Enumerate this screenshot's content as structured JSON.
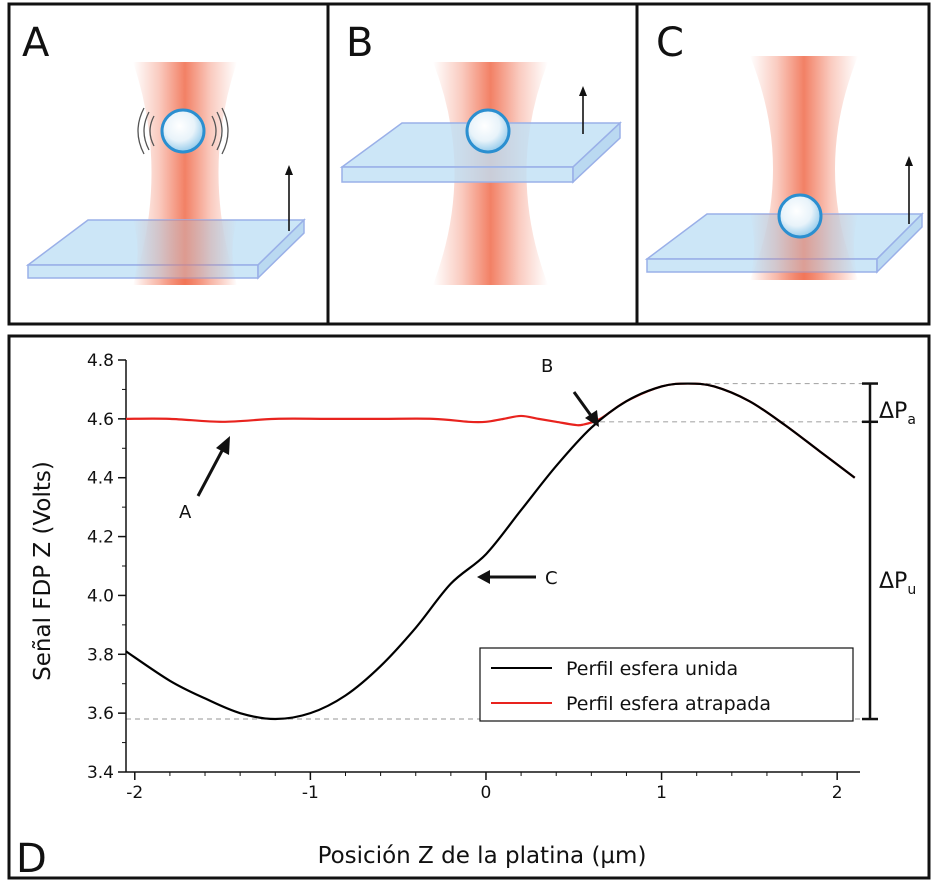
{
  "panels": [
    {
      "letter": "A",
      "state": "sphere trapped above, stage below"
    },
    {
      "letter": "B",
      "state": "stage touching sphere"
    },
    {
      "letter": "C",
      "state": "sphere bound on stage"
    }
  ],
  "colors": {
    "beam": "#f06a4a",
    "stage_top": "#bfe0f5",
    "stage_edge": "#9ab0e8",
    "sphere": "#cfe8f7",
    "sphere_edge": "#2b8fd0",
    "bound_line": "#000000",
    "trapped_line": "#e8231e"
  },
  "plot": {
    "panel_letter": "D",
    "xlabel": "Posición Z de la platina (µm)",
    "ylabel": "Señal FDP Z (Volts)",
    "annotations": {
      "A": "A",
      "B": "B",
      "C": "C"
    },
    "delta_a": {
      "main": "ΔP",
      "sub": "a"
    },
    "delta_u": {
      "main": "ΔP",
      "sub": "u"
    },
    "legend": [
      "Perfil esfera unida",
      "Perfil esfera atrapada"
    ]
  },
  "chart_data": {
    "type": "line",
    "xlabel": "Posición Z de la platina (µm)",
    "ylabel": "Señal FDP Z (Volts)",
    "xlim": [
      -2.05,
      2.13
    ],
    "ylim": [
      3.4,
      4.8
    ],
    "xticks": [
      -2,
      -1,
      0,
      1,
      2
    ],
    "yticks": [
      3.4,
      3.6,
      3.8,
      4.0,
      4.2,
      4.4,
      4.6,
      4.8
    ],
    "xtick_labels": [
      "-2",
      "-1",
      "0",
      "1",
      "2"
    ],
    "ytick_labels": [
      "3.4",
      "3.6",
      "3.8",
      "4.0",
      "4.2",
      "4.4",
      "4.6",
      "4.8"
    ],
    "grid": false,
    "legend_position": "bottom-right",
    "reference_lines_y": [
      4.72,
      4.59,
      3.58
    ],
    "series": [
      {
        "name": "Perfil esfera unida",
        "color": "#000000",
        "x": [
          -2.05,
          -1.8,
          -1.6,
          -1.4,
          -1.2,
          -1.0,
          -0.8,
          -0.6,
          -0.4,
          -0.2,
          0.0,
          0.2,
          0.4,
          0.6,
          0.8,
          1.0,
          1.15,
          1.3,
          1.5,
          1.7,
          1.9,
          2.1
        ],
        "y": [
          3.81,
          3.71,
          3.65,
          3.6,
          3.58,
          3.6,
          3.66,
          3.76,
          3.89,
          4.04,
          4.14,
          4.29,
          4.44,
          4.57,
          4.66,
          4.71,
          4.72,
          4.71,
          4.66,
          4.58,
          4.49,
          4.4
        ]
      },
      {
        "name": "Perfil esfera atrapada",
        "color": "#e8231e",
        "x": [
          -2.05,
          -1.8,
          -1.5,
          -1.2,
          -0.9,
          -0.6,
          -0.3,
          -0.1,
          0.0,
          0.1,
          0.2,
          0.3,
          0.4,
          0.5,
          0.55,
          0.65,
          0.8,
          1.0,
          1.15,
          1.3,
          1.5,
          1.7,
          1.9,
          2.1
        ],
        "y": [
          4.6,
          4.6,
          4.59,
          4.6,
          4.6,
          4.6,
          4.6,
          4.59,
          4.59,
          4.6,
          4.61,
          4.6,
          4.59,
          4.58,
          4.58,
          4.6,
          4.66,
          4.71,
          4.72,
          4.71,
          4.66,
          4.58,
          4.49,
          4.4
        ]
      }
    ]
  }
}
